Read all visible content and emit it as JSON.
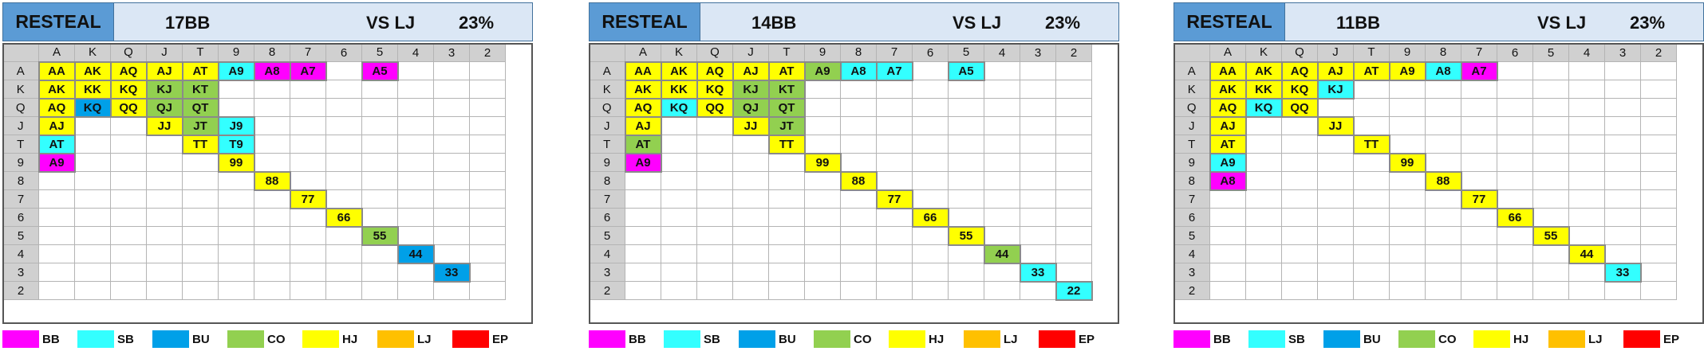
{
  "ranks": [
    "A",
    "K",
    "Q",
    "J",
    "T",
    "9",
    "8",
    "7",
    "6",
    "5",
    "4",
    "3",
    "2"
  ],
  "legend": [
    {
      "key": "BB",
      "label": "BB",
      "color": "#ff00ff"
    },
    {
      "key": "SB",
      "label": "SB",
      "color": "#33ffff"
    },
    {
      "key": "BU",
      "label": "BU",
      "color": "#00a0e8"
    },
    {
      "key": "CO",
      "label": "CO",
      "color": "#92d050"
    },
    {
      "key": "HJ",
      "label": "HJ",
      "color": "#ffff00"
    },
    {
      "key": "LJ",
      "label": "LJ",
      "color": "#ffc000"
    },
    {
      "key": "EP",
      "label": "EP",
      "color": "#ff0000"
    }
  ],
  "panels": [
    {
      "title": "RESTEAL",
      "stack": "17BB",
      "vs": "VS LJ",
      "pct": "23%",
      "rows": [
        [
          "HJ",
          "HJ",
          "HJ",
          "HJ",
          "HJ",
          "SB",
          "BB",
          "BB",
          "",
          "BB",
          "",
          "",
          ""
        ],
        [
          "HJ",
          "HJ",
          "HJ",
          "CO",
          "CO",
          "",
          "",
          "",
          "",
          "",
          "",
          "",
          ""
        ],
        [
          "HJ",
          "BU",
          "HJ",
          "CO",
          "CO",
          "",
          "",
          "",
          "",
          "",
          "",
          "",
          ""
        ],
        [
          "HJ",
          "",
          "",
          "HJ",
          "CO",
          "SB",
          "",
          "",
          "",
          "",
          "",
          "",
          ""
        ],
        [
          "SB",
          "",
          "",
          "",
          "HJ",
          "SB",
          "",
          "",
          "",
          "",
          "",
          "",
          ""
        ],
        [
          "BB",
          "",
          "",
          "",
          "",
          "HJ",
          "",
          "",
          "",
          "",
          "",
          "",
          ""
        ],
        [
          "",
          "",
          "",
          "",
          "",
          "",
          "HJ",
          "",
          "",
          "",
          "",
          "",
          ""
        ],
        [
          "",
          "",
          "",
          "",
          "",
          "",
          "",
          "HJ",
          "",
          "",
          "",
          "",
          ""
        ],
        [
          "",
          "",
          "",
          "",
          "",
          "",
          "",
          "",
          "HJ",
          "",
          "",
          "",
          ""
        ],
        [
          "",
          "",
          "",
          "",
          "",
          "",
          "",
          "",
          "",
          "CO",
          "",
          "",
          ""
        ],
        [
          "",
          "",
          "",
          "",
          "",
          "",
          "",
          "",
          "",
          "",
          "BU",
          "",
          ""
        ],
        [
          "",
          "",
          "",
          "",
          "",
          "",
          "",
          "",
          "",
          "",
          "",
          "BU",
          ""
        ],
        [
          "",
          "",
          "",
          "",
          "",
          "",
          "",
          "",
          "",
          "",
          "",
          "",
          ""
        ]
      ]
    },
    {
      "title": "RESTEAL",
      "stack": "14BB",
      "vs": "VS LJ",
      "pct": "23%",
      "rows": [
        [
          "HJ",
          "HJ",
          "HJ",
          "HJ",
          "HJ",
          "CO",
          "SB",
          "SB",
          "",
          "SB",
          "",
          "",
          ""
        ],
        [
          "HJ",
          "HJ",
          "HJ",
          "CO",
          "CO",
          "",
          "",
          "",
          "",
          "",
          "",
          "",
          ""
        ],
        [
          "HJ",
          "SB",
          "HJ",
          "CO",
          "CO",
          "",
          "",
          "",
          "",
          "",
          "",
          "",
          ""
        ],
        [
          "HJ",
          "",
          "",
          "HJ",
          "CO",
          "",
          "",
          "",
          "",
          "",
          "",
          "",
          ""
        ],
        [
          "CO",
          "",
          "",
          "",
          "HJ",
          "",
          "",
          "",
          "",
          "",
          "",
          "",
          ""
        ],
        [
          "BB",
          "",
          "",
          "",
          "",
          "HJ",
          "",
          "",
          "",
          "",
          "",
          "",
          ""
        ],
        [
          "",
          "",
          "",
          "",
          "",
          "",
          "HJ",
          "",
          "",
          "",
          "",
          "",
          ""
        ],
        [
          "",
          "",
          "",
          "",
          "",
          "",
          "",
          "HJ",
          "",
          "",
          "",
          "",
          ""
        ],
        [
          "",
          "",
          "",
          "",
          "",
          "",
          "",
          "",
          "HJ",
          "",
          "",
          "",
          ""
        ],
        [
          "",
          "",
          "",
          "",
          "",
          "",
          "",
          "",
          "",
          "HJ",
          "",
          "",
          ""
        ],
        [
          "",
          "",
          "",
          "",
          "",
          "",
          "",
          "",
          "",
          "",
          "CO",
          "",
          ""
        ],
        [
          "",
          "",
          "",
          "",
          "",
          "",
          "",
          "",
          "",
          "",
          "",
          "SB",
          ""
        ],
        [
          "",
          "",
          "",
          "",
          "",
          "",
          "",
          "",
          "",
          "",
          "",
          "",
          "SB"
        ]
      ]
    },
    {
      "title": "RESTEAL",
      "stack": "11BB",
      "vs": "VS LJ",
      "pct": "23%",
      "rows": [
        [
          "HJ",
          "HJ",
          "HJ",
          "HJ",
          "HJ",
          "HJ",
          "SB",
          "BB",
          "",
          "",
          "",
          "",
          ""
        ],
        [
          "HJ",
          "HJ",
          "HJ",
          "SB",
          "",
          "",
          "",
          "",
          "",
          "",
          "",
          "",
          ""
        ],
        [
          "HJ",
          "SB",
          "HJ",
          "",
          "",
          "",
          "",
          "",
          "",
          "",
          "",
          "",
          ""
        ],
        [
          "HJ",
          "",
          "",
          "HJ",
          "",
          "",
          "",
          "",
          "",
          "",
          "",
          "",
          ""
        ],
        [
          "HJ",
          "",
          "",
          "",
          "HJ",
          "",
          "",
          "",
          "",
          "",
          "",
          "",
          ""
        ],
        [
          "SB",
          "",
          "",
          "",
          "",
          "HJ",
          "",
          "",
          "",
          "",
          "",
          "",
          ""
        ],
        [
          "BB",
          "",
          "",
          "",
          "",
          "",
          "HJ",
          "",
          "",
          "",
          "",
          "",
          ""
        ],
        [
          "",
          "",
          "",
          "",
          "",
          "",
          "",
          "HJ",
          "",
          "",
          "",
          "",
          ""
        ],
        [
          "",
          "",
          "",
          "",
          "",
          "",
          "",
          "",
          "HJ",
          "",
          "",
          "",
          ""
        ],
        [
          "",
          "",
          "",
          "",
          "",
          "",
          "",
          "",
          "",
          "HJ",
          "",
          "",
          ""
        ],
        [
          "",
          "",
          "",
          "",
          "",
          "",
          "",
          "",
          "",
          "",
          "HJ",
          "",
          ""
        ],
        [
          "",
          "",
          "",
          "",
          "",
          "",
          "",
          "",
          "",
          "",
          "",
          "SB",
          ""
        ],
        [
          "",
          "",
          "",
          "",
          "",
          "",
          "",
          "",
          "",
          "",
          "",
          "",
          ""
        ]
      ]
    }
  ]
}
